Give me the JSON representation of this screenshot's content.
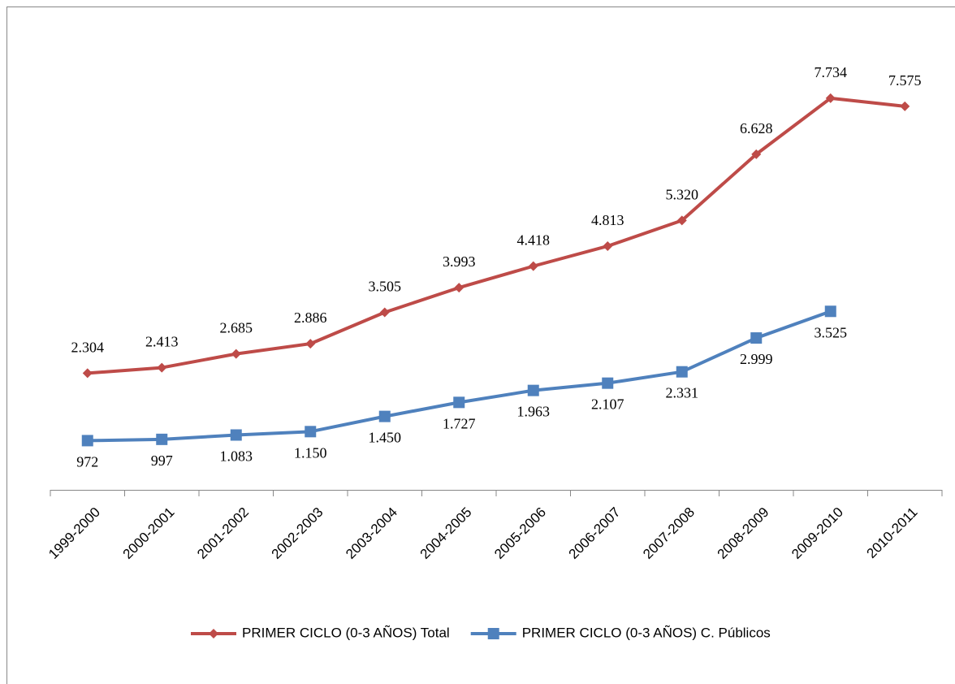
{
  "chart_data": {
    "type": "line",
    "categories": [
      "1999-2000",
      "2000-2001",
      "2001-2002",
      "2002-2003",
      "2003-2004",
      "2004-2005",
      "2005-2006",
      "2006-2007",
      "2007-2008",
      "2008-2009",
      "2009-2010",
      "2010-2011"
    ],
    "series": [
      {
        "name": "PRIMER CICLO (0-3 AÑOS) Total",
        "color": "#be4b48",
        "marker": "diamond",
        "values": [
          2304,
          2413,
          2685,
          2886,
          3505,
          3993,
          4418,
          4813,
          5320,
          6628,
          7734,
          7575
        ],
        "value_labels": [
          "2.304",
          "2.413",
          "2.685",
          "2.886",
          "3.505",
          "3.993",
          "4.418",
          "4.813",
          "5.320",
          "6.628",
          "7.734",
          "7.575"
        ]
      },
      {
        "name": "PRIMER CICLO (0-3 AÑOS) C. Públicos",
        "color": "#4f81bd",
        "marker": "square",
        "values": [
          972,
          997,
          1083,
          1150,
          1450,
          1727,
          1963,
          2107,
          2331,
          2999,
          3525,
          null
        ],
        "value_labels": [
          "972",
          "997",
          "1.083",
          "1.150",
          "1.450",
          "1.727",
          "1.963",
          "2.107",
          "2.331",
          "2.999",
          "3.525",
          null
        ]
      }
    ],
    "ylim": [
      0,
      9000
    ],
    "legend": "bottom"
  }
}
